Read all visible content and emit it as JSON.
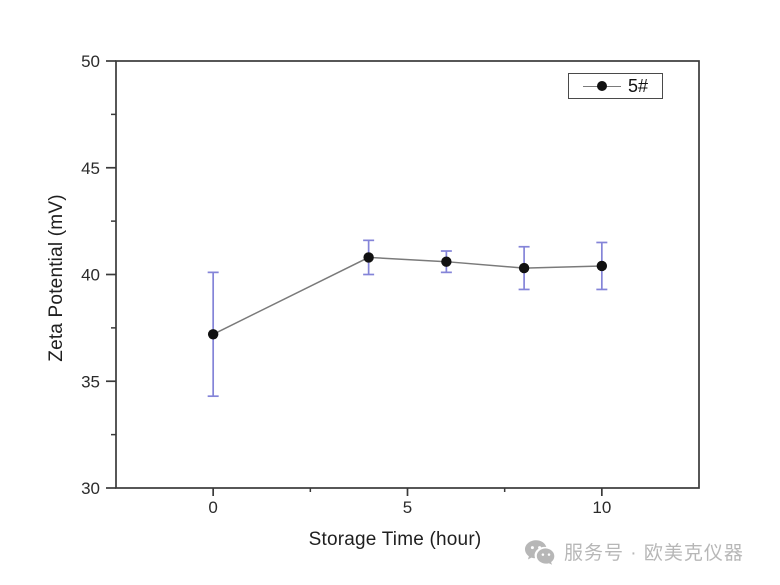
{
  "chart_data": {
    "type": "line",
    "title": "",
    "xlabel": "Storage Time (hour)",
    "ylabel": "Zeta Potential (mV)",
    "xlim": [
      -2.5,
      12.5
    ],
    "ylim": [
      30,
      50
    ],
    "x_major_ticks": [
      0,
      5,
      10
    ],
    "x_minor_ticks": [
      2.5,
      7.5
    ],
    "y_major_ticks": [
      30,
      35,
      40,
      45,
      50
    ],
    "y_minor_ticks": [
      32.5,
      37.5,
      42.5,
      47.5
    ],
    "grid": false,
    "legend_position": "top-right-inside",
    "series": [
      {
        "name": "5#",
        "x": [
          0,
          4,
          6,
          8,
          10
        ],
        "y": [
          37.2,
          40.8,
          40.6,
          40.3,
          40.4
        ],
        "y_err": [
          2.9,
          0.8,
          0.5,
          1.0,
          1.1
        ],
        "marker": "filled-circle",
        "line_color": "#7a7a7a",
        "marker_color": "#111111",
        "error_color": "#8484d8"
      }
    ]
  },
  "colors": {
    "axis": "#3a3a3a",
    "tick_label": "#2b2b2b",
    "background": "#ffffff",
    "watermark": "#b7b7b7"
  },
  "watermark": {
    "icon": "wechat-icon",
    "text": "服务号 · 欧美克仪器"
  }
}
